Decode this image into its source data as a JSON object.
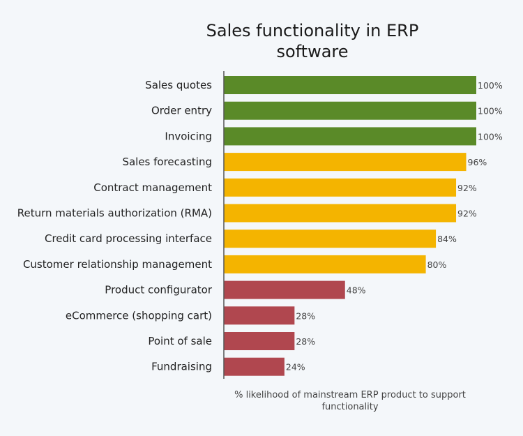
{
  "chart_data": {
    "type": "bar",
    "orientation": "horizontal",
    "title_lines": [
      "Sales functionality in ERP",
      "software"
    ],
    "xlabel_lines": [
      "% likelihood of mainstream ERP product to support",
      "functionality"
    ],
    "ylabel": "",
    "xlim": [
      0,
      100
    ],
    "grid": false,
    "categories": [
      "Sales quotes",
      "Order entry",
      "Invoicing",
      "Sales forecasting",
      "Contract management",
      "Return materials authorization (RMA)",
      "Credit card processing interface",
      "Customer relationship management",
      "Product configurator",
      "eCommerce (shopping cart)",
      "Point of sale",
      "Fundraising"
    ],
    "values": [
      100,
      100,
      100,
      96,
      92,
      92,
      84,
      80,
      48,
      28,
      28,
      24
    ],
    "data_labels": [
      "100%",
      "100%",
      "100%",
      "96%",
      "92%",
      "92%",
      "84%",
      "80%",
      "48%",
      "28%",
      "28%",
      "24%"
    ],
    "bar_colors": [
      "#5a8a28",
      "#5a8a28",
      "#5a8a28",
      "#f4b400",
      "#f4b400",
      "#f4b400",
      "#f4b400",
      "#f4b400",
      "#b0474f",
      "#b0474f",
      "#b0474f",
      "#b0474f"
    ]
  }
}
